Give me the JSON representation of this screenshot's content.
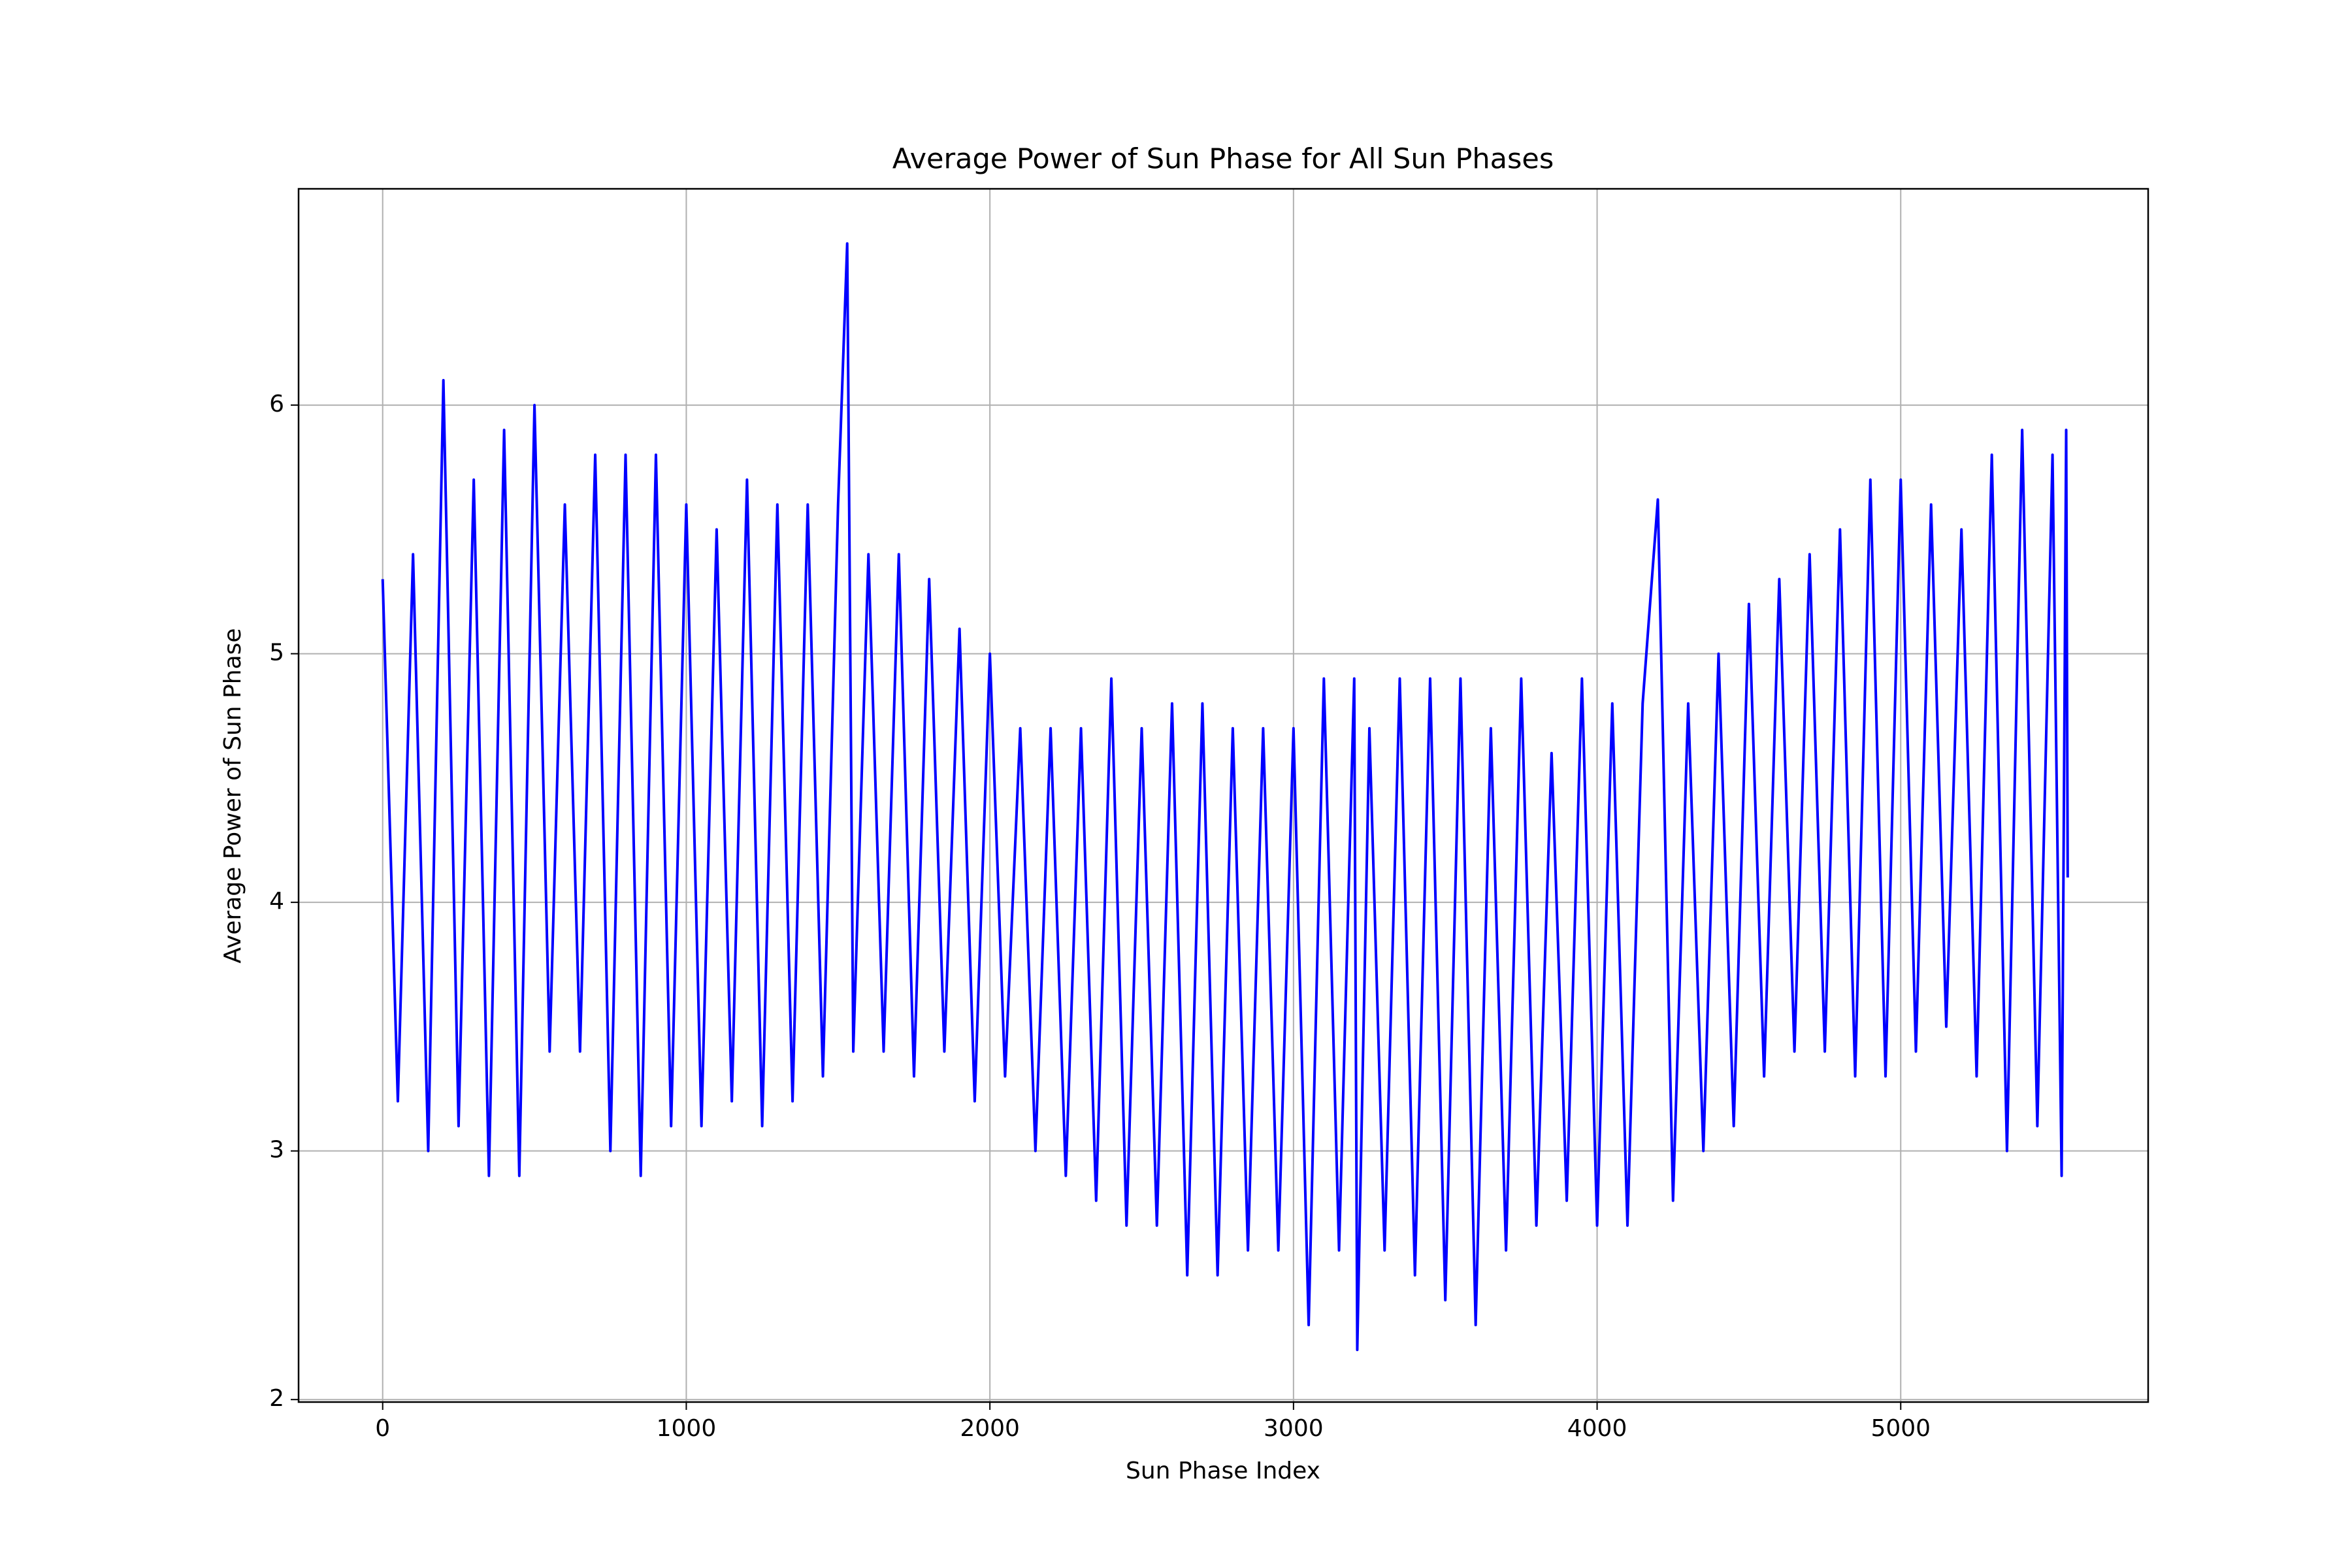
{
  "chart_data": {
    "type": "line",
    "title": "Average Power of Sun Phase for All Sun Phases",
    "x_label": "Sun Phase Index",
    "y_label": "Average Power of Sun Phase",
    "x": [
      0,
      50,
      100,
      150,
      200,
      250,
      300,
      350,
      400,
      450,
      500,
      550,
      600,
      650,
      700,
      750,
      800,
      850,
      900,
      950,
      1000,
      1050,
      1100,
      1150,
      1200,
      1250,
      1300,
      1350,
      1400,
      1450,
      1500,
      1530,
      1550,
      1600,
      1650,
      1700,
      1750,
      1800,
      1850,
      1900,
      1950,
      2000,
      2050,
      2100,
      2150,
      2200,
      2250,
      2300,
      2350,
      2400,
      2450,
      2500,
      2550,
      2600,
      2650,
      2700,
      2750,
      2800,
      2850,
      2900,
      2950,
      3000,
      3050,
      3100,
      3150,
      3200,
      3210,
      3250,
      3300,
      3350,
      3400,
      3450,
      3500,
      3550,
      3600,
      3650,
      3700,
      3750,
      3800,
      3850,
      3900,
      3950,
      4000,
      4050,
      4100,
      4150,
      4200,
      4250,
      4300,
      4350,
      4400,
      4450,
      4500,
      4550,
      4600,
      4650,
      4700,
      4750,
      4800,
      4850,
      4900,
      4950,
      5000,
      5050,
      5100,
      5150,
      5200,
      5250,
      5300,
      5350,
      5400,
      5450,
      5500,
      5530,
      5545,
      5550
    ],
    "series": [
      {
        "name": "Average Power",
        "color": "#0000ff",
        "values": [
          5.3,
          3.2,
          5.4,
          3.0,
          6.1,
          3.1,
          5.7,
          2.9,
          5.9,
          2.9,
          6.0,
          3.4,
          5.6,
          3.4,
          5.8,
          3.0,
          5.8,
          2.9,
          5.8,
          3.1,
          5.6,
          3.1,
          5.5,
          3.2,
          5.7,
          3.1,
          5.6,
          3.2,
          5.6,
          3.3,
          5.6,
          6.65,
          3.4,
          5.4,
          3.4,
          5.4,
          3.3,
          5.3,
          3.4,
          5.1,
          3.2,
          5.0,
          3.3,
          4.7,
          3.0,
          4.7,
          2.9,
          4.7,
          2.8,
          4.9,
          2.7,
          4.7,
          2.7,
          4.8,
          2.5,
          4.8,
          2.5,
          4.7,
          2.6,
          4.7,
          2.6,
          4.7,
          2.3,
          4.9,
          2.6,
          4.9,
          2.2,
          4.7,
          2.6,
          4.9,
          2.5,
          4.9,
          2.4,
          4.9,
          2.3,
          4.7,
          2.6,
          4.9,
          2.7,
          4.6,
          2.8,
          4.9,
          2.7,
          4.8,
          2.7,
          4.8,
          5.62,
          2.8,
          4.8,
          3.0,
          5.0,
          3.1,
          5.2,
          3.3,
          5.3,
          3.4,
          5.4,
          3.4,
          5.5,
          3.3,
          5.7,
          3.3,
          5.7,
          3.4,
          5.6,
          3.5,
          5.5,
          3.3,
          5.8,
          3.0,
          5.9,
          3.1,
          5.8,
          2.9,
          5.9,
          4.1
        ]
      }
    ],
    "xlim": [
      -277,
      5815
    ],
    "ylim": [
      1.99,
      6.87
    ],
    "xticks": [
      0,
      1000,
      2000,
      3000,
      4000,
      5000
    ],
    "yticks": [
      2,
      3,
      4,
      5,
      6
    ],
    "grid": true
  }
}
